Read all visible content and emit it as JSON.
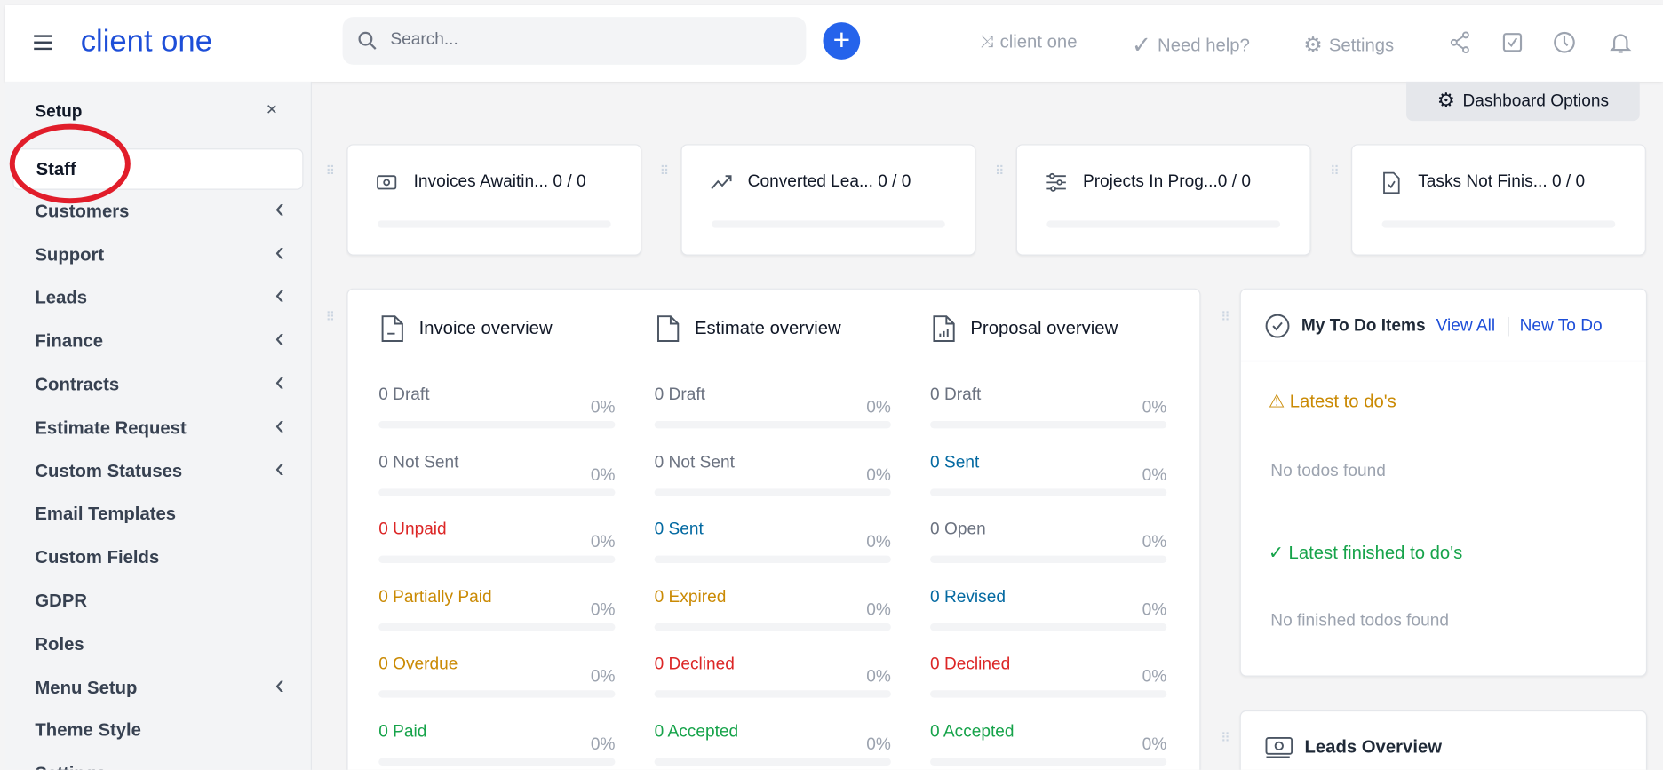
{
  "header": {
    "brand": "client one",
    "search_placeholder": "Search...",
    "client_switch": "client one",
    "need_help": "Need help?",
    "settings": "Settings"
  },
  "sidebar": {
    "title": "Setup",
    "close": "×",
    "items": [
      {
        "label": "Staff",
        "chevron": false,
        "active": true
      },
      {
        "label": "Customers",
        "chevron": true
      },
      {
        "label": "Support",
        "chevron": true
      },
      {
        "label": "Leads",
        "chevron": true
      },
      {
        "label": "Finance",
        "chevron": true
      },
      {
        "label": "Contracts",
        "chevron": true
      },
      {
        "label": "Estimate Request",
        "chevron": true
      },
      {
        "label": "Custom Statuses",
        "chevron": true
      },
      {
        "label": "Email Templates",
        "chevron": false
      },
      {
        "label": "Custom Fields",
        "chevron": false
      },
      {
        "label": "GDPR",
        "chevron": false
      },
      {
        "label": "Roles",
        "chevron": false
      },
      {
        "label": "Menu Setup",
        "chevron": true
      },
      {
        "label": "Theme Style",
        "chevron": false
      },
      {
        "label": "Settings",
        "chevron": false
      }
    ]
  },
  "dashboard_options": "Dashboard Options",
  "stats": [
    {
      "title": "Invoices Awaitin... 0 / 0",
      "icon": "money-icon",
      "progress": 0
    },
    {
      "title": "Converted Lea... 0 / 0",
      "icon": "trend-up-icon",
      "progress": 0
    },
    {
      "title": "Projects In Prog...0 / 0",
      "icon": "sliders-icon",
      "progress": 0
    },
    {
      "title": "Tasks Not Finis... 0 / 0",
      "icon": "file-check-icon",
      "progress": 0
    }
  ],
  "overviews": [
    {
      "title": "Invoice overview",
      "rows": [
        {
          "label": "0 Draft",
          "pct": "0%",
          "color": "muted"
        },
        {
          "label": "0 Not Sent",
          "pct": "0%",
          "color": "muted"
        },
        {
          "label": "0 Unpaid",
          "pct": "0%",
          "color": "red"
        },
        {
          "label": "0 Partially Paid",
          "pct": "0%",
          "color": "yellow"
        },
        {
          "label": "0 Overdue",
          "pct": "0%",
          "color": "yellow"
        },
        {
          "label": "0 Paid",
          "pct": "0%",
          "color": "green"
        }
      ]
    },
    {
      "title": "Estimate overview",
      "rows": [
        {
          "label": "0 Draft",
          "pct": "0%",
          "color": "muted"
        },
        {
          "label": "0 Not Sent",
          "pct": "0%",
          "color": "muted"
        },
        {
          "label": "0 Sent",
          "pct": "0%",
          "color": "blue"
        },
        {
          "label": "0 Expired",
          "pct": "0%",
          "color": "yellow"
        },
        {
          "label": "0 Declined",
          "pct": "0%",
          "color": "red"
        },
        {
          "label": "0 Accepted",
          "pct": "0%",
          "color": "green"
        }
      ]
    },
    {
      "title": "Proposal overview",
      "rows": [
        {
          "label": "0 Draft",
          "pct": "0%",
          "color": "muted"
        },
        {
          "label": "0 Sent",
          "pct": "0%",
          "color": "blue"
        },
        {
          "label": "0 Open",
          "pct": "0%",
          "color": "muted"
        },
        {
          "label": "0 Revised",
          "pct": "0%",
          "color": "blue"
        },
        {
          "label": "0 Declined",
          "pct": "0%",
          "color": "red"
        },
        {
          "label": "0 Accepted",
          "pct": "0%",
          "color": "green"
        }
      ]
    }
  ],
  "todo": {
    "title": "My To Do Items",
    "view_all": "View All",
    "new_todo": "New To Do",
    "latest": "Latest to do's",
    "no_todos": "No todos found",
    "finished": "Latest finished to do's",
    "no_finished": "No finished todos found"
  },
  "leads": {
    "title": "Leads Overview"
  }
}
